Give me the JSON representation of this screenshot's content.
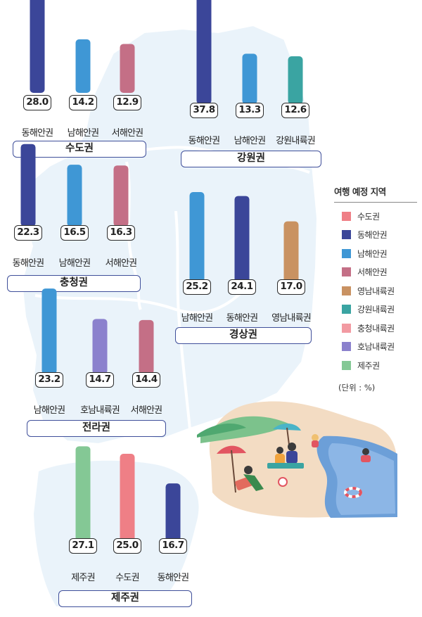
{
  "legend": {
    "title": "여행 예정 지역",
    "unit": "(단위 : %)",
    "items": [
      {
        "label": "수도권",
        "color": "#ef7f86"
      },
      {
        "label": "동해안권",
        "color": "#3b4699"
      },
      {
        "label": "남해안권",
        "color": "#3f97d5"
      },
      {
        "label": "서해안권",
        "color": "#c46f86"
      },
      {
        "label": "영남내륙권",
        "color": "#c99262"
      },
      {
        "label": "강원내륙권",
        "color": "#3aa4a2"
      },
      {
        "label": "충청내륙권",
        "color": "#f29aa2"
      },
      {
        "label": "호남내륙권",
        "color": "#8b81cd"
      },
      {
        "label": "제주권",
        "color": "#84c895"
      }
    ]
  },
  "chart_data": [
    {
      "type": "bar",
      "region": "수도권",
      "categories": [
        "동해안권",
        "남해안권",
        "서해안권"
      ],
      "values": [
        28.0,
        14.2,
        12.9
      ]
    },
    {
      "type": "bar",
      "region": "강원권",
      "categories": [
        "동해안권",
        "남해안권",
        "강원내륙권"
      ],
      "values": [
        37.8,
        13.3,
        12.6
      ]
    },
    {
      "type": "bar",
      "region": "충청권",
      "categories": [
        "동해안권",
        "남해안권",
        "서해안권"
      ],
      "values": [
        22.3,
        16.5,
        16.3
      ]
    },
    {
      "type": "bar",
      "region": "경상권",
      "categories": [
        "남해안권",
        "동해안권",
        "영남내륙권"
      ],
      "values": [
        25.2,
        24.1,
        17.0
      ]
    },
    {
      "type": "bar",
      "region": "전라권",
      "categories": [
        "남해안권",
        "호남내륙권",
        "서해안권"
      ],
      "values": [
        23.2,
        14.7,
        14.4
      ]
    },
    {
      "type": "bar",
      "region": "제주권",
      "categories": [
        "제주권",
        "수도권",
        "동해안권"
      ],
      "values": [
        27.1,
        25.0,
        16.7
      ]
    }
  ]
}
